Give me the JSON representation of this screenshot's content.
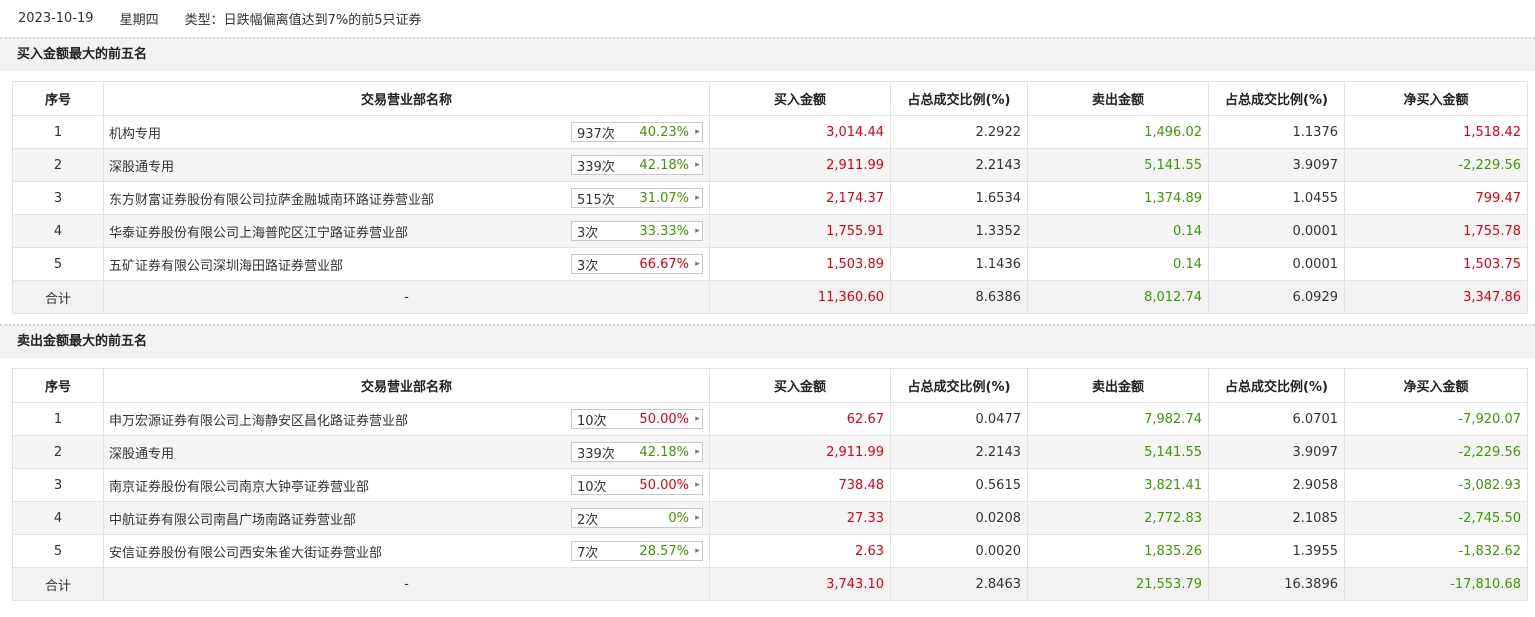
{
  "header": {
    "date": "2023-10-19",
    "weekday": "星期四",
    "type": "类型：日跌幅偏离值达到7%的前5只证券"
  },
  "columns": [
    "序号",
    "交易营业部名称",
    "买入金额",
    "占总成交比例(%)",
    "卖出金额",
    "占总成交比例(%)",
    "净买入金额"
  ],
  "colors": {
    "up": "#e4000f",
    "down": "#3b9b00"
  },
  "buy_section": {
    "title": "买入金额最大的前五名",
    "rows": [
      {
        "no": "1",
        "name": "机构专用",
        "times": "937次",
        "pct": "40.23%",
        "pct_color": "green",
        "buy": "3,014.44",
        "buy_ratio": "2.2922",
        "sell": "1,496.02",
        "sell_ratio": "1.1376",
        "net": "1,518.42",
        "net_color": "red"
      },
      {
        "no": "2",
        "name": "深股通专用",
        "times": "339次",
        "pct": "42.18%",
        "pct_color": "green",
        "buy": "2,911.99",
        "buy_ratio": "2.2143",
        "sell": "5,141.55",
        "sell_ratio": "3.9097",
        "net": "-2,229.56",
        "net_color": "green"
      },
      {
        "no": "3",
        "name": "东方财富证券股份有限公司拉萨金融城南环路证券营业部",
        "times": "515次",
        "pct": "31.07%",
        "pct_color": "green",
        "buy": "2,174.37",
        "buy_ratio": "1.6534",
        "sell": "1,374.89",
        "sell_ratio": "1.0455",
        "net": "799.47",
        "net_color": "red"
      },
      {
        "no": "4",
        "name": "华泰证券股份有限公司上海普陀区江宁路证券营业部",
        "times": "3次",
        "pct": "33.33%",
        "pct_color": "green",
        "buy": "1,755.91",
        "buy_ratio": "1.3352",
        "sell": "0.14",
        "sell_ratio": "0.0001",
        "net": "1,755.78",
        "net_color": "red"
      },
      {
        "no": "5",
        "name": "五矿证券有限公司深圳海田路证券营业部",
        "times": "3次",
        "pct": "66.67%",
        "pct_color": "red",
        "buy": "1,503.89",
        "buy_ratio": "1.1436",
        "sell": "0.14",
        "sell_ratio": "0.0001",
        "net": "1,503.75",
        "net_color": "red"
      }
    ],
    "total": {
      "label": "合计",
      "name": "-",
      "buy": "11,360.60",
      "buy_ratio": "8.6386",
      "sell": "8,012.74",
      "sell_ratio": "6.0929",
      "net": "3,347.86",
      "net_color": "red"
    }
  },
  "sell_section": {
    "title": "卖出金额最大的前五名",
    "rows": [
      {
        "no": "1",
        "name": "申万宏源证券有限公司上海静安区昌化路证券营业部",
        "times": "10次",
        "pct": "50.00%",
        "pct_color": "red",
        "buy": "62.67",
        "buy_ratio": "0.0477",
        "sell": "7,982.74",
        "sell_ratio": "6.0701",
        "net": "-7,920.07",
        "net_color": "green"
      },
      {
        "no": "2",
        "name": "深股通专用",
        "times": "339次",
        "pct": "42.18%",
        "pct_color": "green",
        "buy": "2,911.99",
        "buy_ratio": "2.2143",
        "sell": "5,141.55",
        "sell_ratio": "3.9097",
        "net": "-2,229.56",
        "net_color": "green"
      },
      {
        "no": "3",
        "name": "南京证券股份有限公司南京大钟亭证券营业部",
        "times": "10次",
        "pct": "50.00%",
        "pct_color": "red",
        "buy": "738.48",
        "buy_ratio": "0.5615",
        "sell": "3,821.41",
        "sell_ratio": "2.9058",
        "net": "-3,082.93",
        "net_color": "green"
      },
      {
        "no": "4",
        "name": "中航证券有限公司南昌广场南路证券营业部",
        "times": "2次",
        "pct": "0%",
        "pct_color": "green",
        "buy": "27.33",
        "buy_ratio": "0.0208",
        "sell": "2,772.83",
        "sell_ratio": "2.1085",
        "net": "-2,745.50",
        "net_color": "green"
      },
      {
        "no": "5",
        "name": "安信证券股份有限公司西安朱雀大街证券营业部",
        "times": "7次",
        "pct": "28.57%",
        "pct_color": "green",
        "buy": "2.63",
        "buy_ratio": "0.0020",
        "sell": "1,835.26",
        "sell_ratio": "1.3955",
        "net": "-1,832.62",
        "net_color": "green"
      }
    ],
    "total": {
      "label": "合计",
      "name": "-",
      "buy": "3,743.10",
      "buy_ratio": "2.8463",
      "sell": "21,553.79",
      "sell_ratio": "16.3896",
      "net": "-17,810.68",
      "net_color": "green"
    }
  }
}
